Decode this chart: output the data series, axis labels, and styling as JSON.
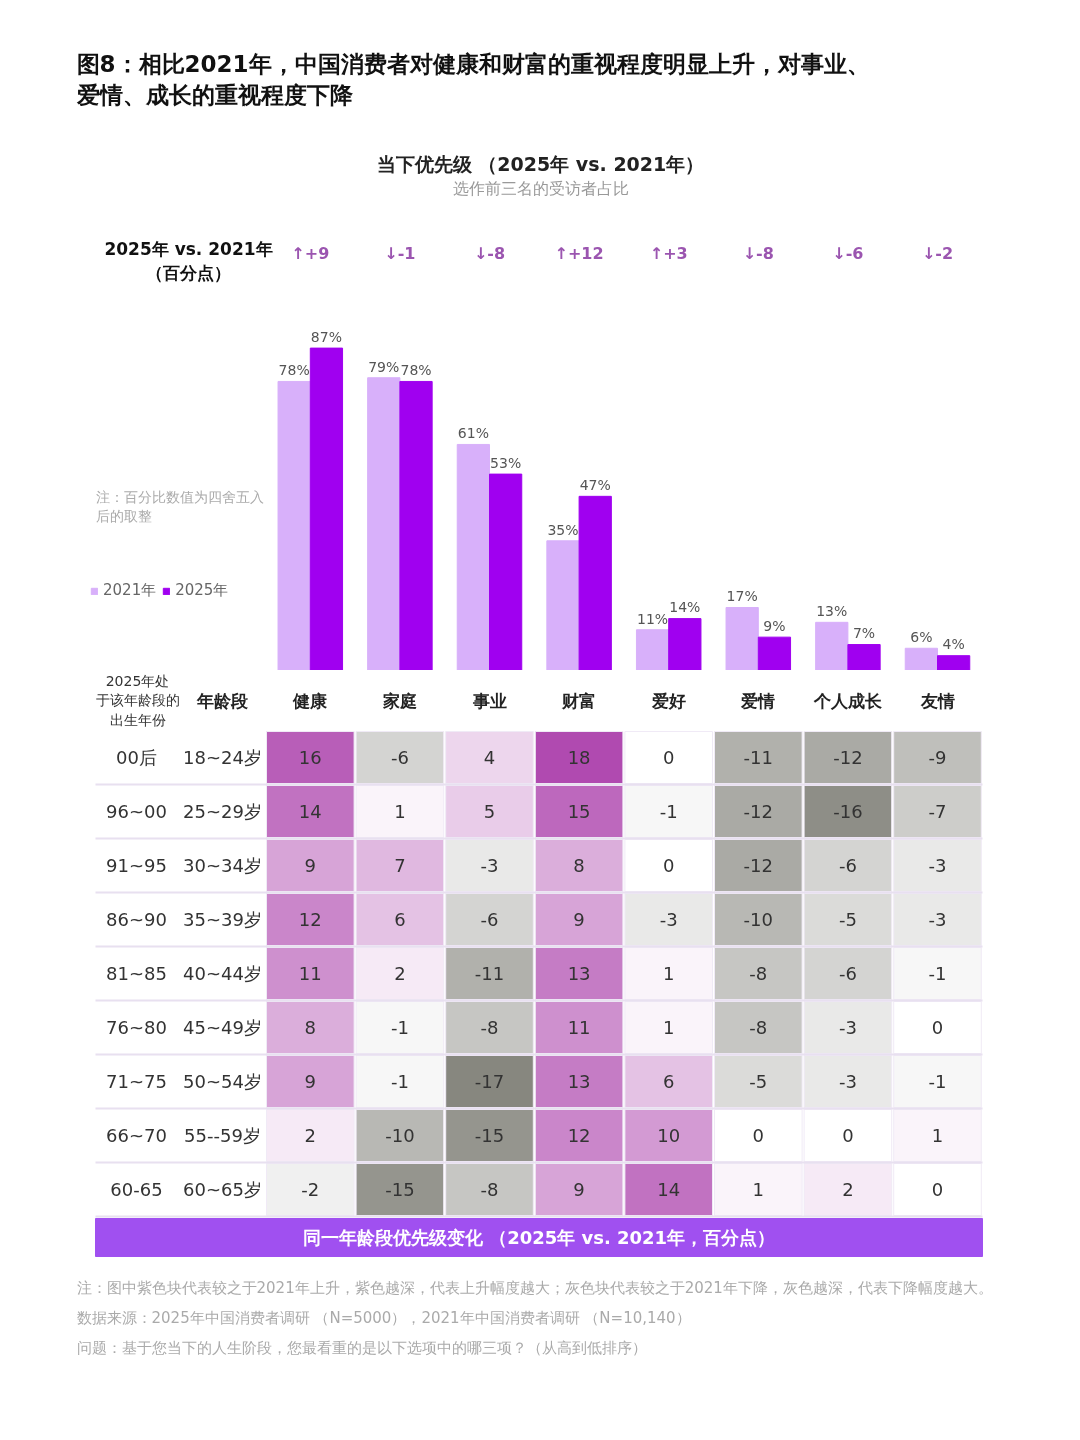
{
  "chart_data": [
    {
      "type": "other",
      "title": "图8：相比2021年，中国消费者对健康和财富的重视程度明显上升，对事业、爱情、成长的重视程度下降"
    },
    {
      "type": "bar",
      "title": "当下优先级 （2025年 vs. 2021年）",
      "subtitle": "选作前三名的受访者占比",
      "categories": [
        null,
        null,
        null,
        null,
        null,
        null,
        null,
        null
      ],
      "series": [
        {
          "name": "2021年",
          "color": "#d8b0fa",
          "values": [
            78,
            79,
            61,
            35,
            11,
            17,
            13,
            6
          ],
          "value_labels": [
            "78%",
            "79%",
            "61%",
            "35%",
            "11%",
            "17%",
            "13%",
            "6%"
          ]
        },
        {
          "name": "2025年",
          "color": "#a000f0",
          "values": [
            87,
            78,
            53,
            47,
            14,
            9,
            7,
            4
          ],
          "value_labels": [
            "87%",
            "78%",
            "53%",
            "47%",
            "14%",
            "9%",
            "7%",
            "4%"
          ]
        }
      ],
      "legend": "left",
      "annotations": [
        "2025年 vs. 2021年（百分点）",
        "注：百分比数值为四舍五入后的取整",
        "↑+9",
        "↓-1",
        "↓-8",
        "↑+12",
        "↑+3",
        "↓-8",
        "↓-6",
        "↓-2"
      ]
    },
    {
      "type": "heatmap",
      "xlabel": "同一年龄段优先级变化 （2025年 vs. 2021年，百分点）",
      "categories": [
        "健康",
        "家庭",
        "事业",
        "财富",
        "爱好",
        "爱情",
        "个人成长",
        "友情"
      ],
      "y_categories": [
        "18~24岁",
        "25~29岁",
        "30~34岁",
        "35~39岁",
        "40~44岁",
        "45~49岁",
        "50~54岁",
        "55--59岁",
        "60~65岁"
      ],
      "y2_categories": [
        "00后",
        "96~00",
        "91~95",
        "86~90",
        "81~85",
        "76~80",
        "71~75",
        "66~70",
        "60-65"
      ],
      "cells": [
        [
          16,
          -6,
          4,
          18,
          0,
          -11,
          -12,
          -9
        ],
        [
          14,
          1,
          5,
          15,
          -1,
          -12,
          -16,
          -7
        ],
        [
          9,
          7,
          -3,
          8,
          0,
          -12,
          -6,
          -3
        ],
        [
          12,
          6,
          -6,
          9,
          -3,
          -10,
          -5,
          -3
        ],
        [
          11,
          2,
          -11,
          13,
          1,
          -8,
          -6,
          -1
        ],
        [
          8,
          -1,
          -8,
          11,
          1,
          -8,
          -3,
          0
        ],
        [
          9,
          -1,
          -17,
          13,
          6,
          -5,
          -3,
          -1
        ],
        [
          2,
          -10,
          -15,
          12,
          10,
          0,
          0,
          1
        ],
        [
          -2,
          -15,
          -8,
          9,
          14,
          1,
          2,
          0
        ]
      ],
      "data_labels": true,
      "annotations": [
        "2025年处于该年龄段的出生年份",
        "年龄段",
        "注：图中紫色块代表较之于2021年上升，紫色越深，代表上升幅度越大；灰色块代表较之于2021年下降，灰色越深，代表下降幅度越大。",
        "数据来源：2025年中国消费者调研 （N=5000），2021年中国消费者调研 （N=10,140）",
        "问题：基于您当下的人生阶段，您最看重的是以下选项中的哪三项？（从高到低排序）"
      ]
    }
  ]
}
